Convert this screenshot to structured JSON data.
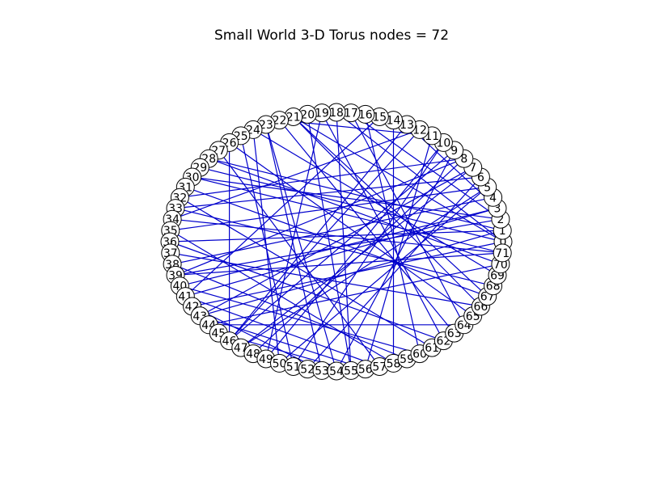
{
  "figure": {
    "title": "Small World 3-D Torus nodes = 72"
  },
  "colors": {
    "edge": "#0000cc",
    "node_fill": "#ffffff",
    "node_stroke": "#000000"
  },
  "graph": {
    "node_count": 72,
    "layout": "circular",
    "edges": [
      [
        0,
        21
      ],
      [
        0,
        29
      ],
      [
        0,
        42
      ],
      [
        0,
        18
      ],
      [
        1,
        28
      ],
      [
        1,
        36
      ],
      [
        2,
        30
      ],
      [
        2,
        17
      ],
      [
        3,
        40
      ],
      [
        3,
        13
      ],
      [
        4,
        38
      ],
      [
        5,
        47
      ],
      [
        5,
        35
      ],
      [
        6,
        33
      ],
      [
        6,
        52
      ],
      [
        7,
        43
      ],
      [
        8,
        48
      ],
      [
        8,
        32
      ],
      [
        9,
        54
      ],
      [
        10,
        49
      ],
      [
        11,
        22
      ],
      [
        11,
        56
      ],
      [
        12,
        34
      ],
      [
        13,
        46
      ],
      [
        14,
        58
      ],
      [
        15,
        41
      ],
      [
        16,
        60
      ],
      [
        17,
        64
      ],
      [
        19,
        62
      ],
      [
        20,
        55
      ],
      [
        21,
        66
      ],
      [
        22,
        63
      ],
      [
        23,
        53
      ],
      [
        24,
        69
      ],
      [
        25,
        51
      ],
      [
        26,
        65
      ],
      [
        27,
        57
      ],
      [
        28,
        70
      ],
      [
        30,
        71
      ],
      [
        31,
        67
      ],
      [
        32,
        61
      ],
      [
        33,
        68
      ],
      [
        34,
        71
      ],
      [
        35,
        58
      ],
      [
        36,
        62
      ],
      [
        37,
        66
      ],
      [
        38,
        59
      ],
      [
        39,
        71
      ],
      [
        40,
        60
      ],
      [
        41,
        57
      ],
      [
        42,
        53
      ],
      [
        43,
        56
      ],
      [
        44,
        64
      ],
      [
        45,
        55
      ],
      [
        12,
        46
      ],
      [
        9,
        46
      ],
      [
        18,
        55
      ],
      [
        21,
        67
      ],
      [
        23,
        54
      ],
      [
        26,
        46
      ],
      [
        39,
        8
      ],
      [
        43,
        1
      ],
      [
        44,
        70
      ],
      [
        49,
        19
      ],
      [
        50,
        24
      ],
      [
        51,
        10
      ],
      [
        2,
        39
      ],
      [
        5,
        50
      ],
      [
        7,
        47
      ],
      [
        3,
        41
      ]
    ]
  }
}
